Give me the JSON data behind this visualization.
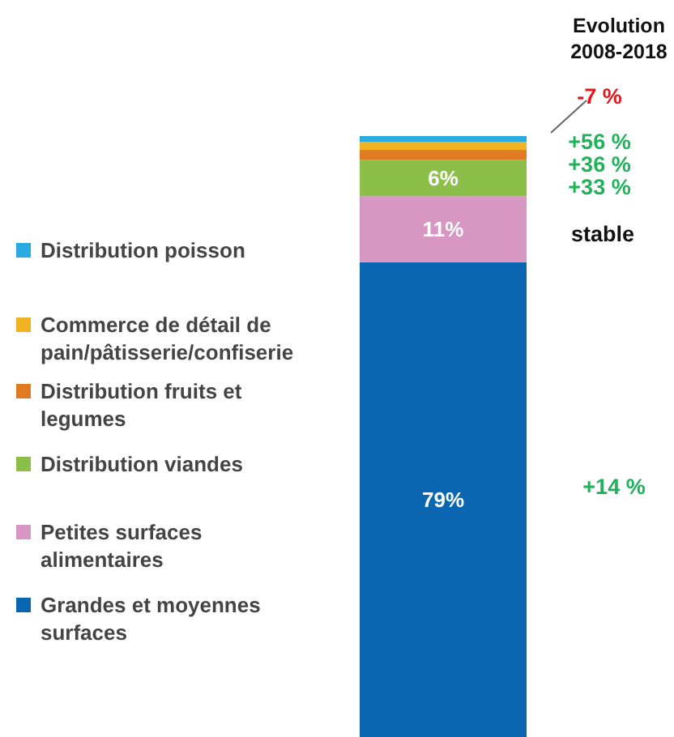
{
  "chart_data": {
    "type": "bar",
    "stacked": true,
    "categories": [
      null
    ],
    "ylim": [
      0,
      100
    ],
    "legend": "left",
    "series": [
      {
        "name": "Grandes et moyennes surfaces",
        "color": "#0b66b2",
        "values": [
          79
        ],
        "value_labels": [
          "79%"
        ]
      },
      {
        "name": "Petites surfaces alimentaires",
        "color": "#d896c3",
        "values": [
          11
        ],
        "value_labels": [
          "11%"
        ]
      },
      {
        "name": "Distribution viandes",
        "color": "#8cbf4a",
        "values": [
          6
        ],
        "value_labels": [
          "6%"
        ]
      },
      {
        "name": "Distribution fruits et legumes",
        "color": "#e07b24",
        "values": [
          1.7
        ],
        "value_labels": [
          null
        ]
      },
      {
        "name": "Commerce de détail de pain/pâtisserie/confiserie",
        "color": "#f0b323",
        "values": [
          1.3
        ],
        "value_labels": [
          null
        ]
      },
      {
        "name": "Distribution poisson",
        "color": "#29abe2",
        "values": [
          1
        ],
        "value_labels": [
          null
        ]
      }
    ],
    "annotations": [
      "Evolution 2008-2018",
      "-7 %",
      "+56 %",
      "+36 %",
      "+33 %",
      "stable",
      "+14 %"
    ]
  }
}
